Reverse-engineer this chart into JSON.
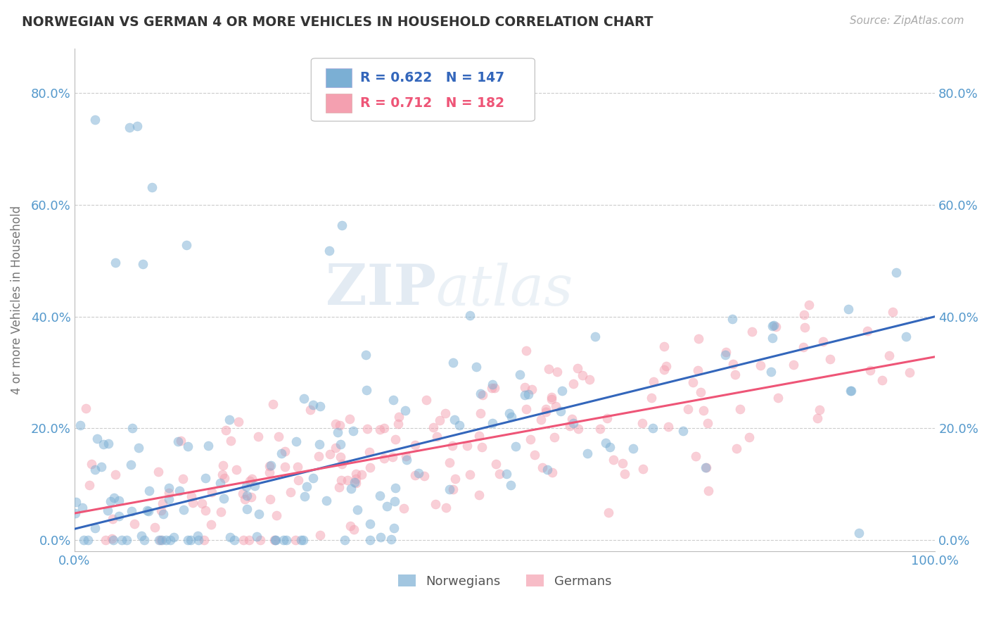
{
  "title": "NORWEGIAN VS GERMAN 4 OR MORE VEHICLES IN HOUSEHOLD CORRELATION CHART",
  "source": "Source: ZipAtlas.com",
  "ylabel": "4 or more Vehicles in Household",
  "xlim": [
    0.0,
    1.0
  ],
  "ylim": [
    -0.02,
    0.88
  ],
  "yticks": [
    0.0,
    0.2,
    0.4,
    0.6,
    0.8
  ],
  "ytick_labels": [
    "0.0%",
    "20.0%",
    "40.0%",
    "60.0%",
    "80.0%"
  ],
  "xticks": [
    0.0,
    0.2,
    0.4,
    0.6,
    0.8,
    1.0
  ],
  "xtick_labels": [
    "0.0%",
    "",
    "",
    "",
    "",
    "100.0%"
  ],
  "norwegian_R": 0.622,
  "norwegian_N": 147,
  "german_R": 0.712,
  "german_N": 182,
  "norwegian_color": "#7BAFD4",
  "german_color": "#F4A0B0",
  "norwegian_line_color": "#3366BB",
  "german_line_color": "#EE5577",
  "watermark_zip": "ZIP",
  "watermark_atlas": "atlas",
  "background_color": "#ffffff",
  "grid_color": "#cccccc",
  "title_color": "#333333",
  "tick_color": "#5599CC",
  "legend_label_color": "#3366BB",
  "legend_pink_label_color": "#EE5577"
}
